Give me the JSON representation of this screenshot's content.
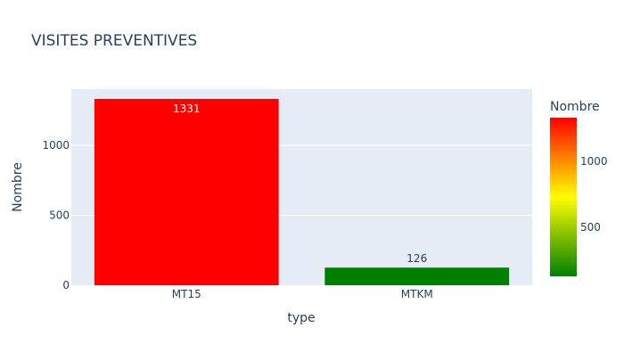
{
  "chart_data": {
    "type": "bar",
    "title": "VISITES PREVENTIVES",
    "xlabel": "type",
    "ylabel": "Nombre",
    "categories": [
      "MT15",
      "MTKM"
    ],
    "values": [
      1331,
      126
    ],
    "value_labels": [
      "1331",
      "126"
    ],
    "bar_colors": [
      "#ff0000",
      "#008000"
    ],
    "ylim": [
      0,
      1401
    ],
    "yticks": [
      0,
      500,
      1000
    ],
    "grid": true,
    "plot_background": "#e5ecf6",
    "colorbar": {
      "title": "Nombre",
      "range": [
        126,
        1331
      ],
      "ticks": [
        500,
        1000
      ],
      "colorscale": [
        "#008000",
        "#ffff00",
        "#ff0000"
      ]
    }
  }
}
